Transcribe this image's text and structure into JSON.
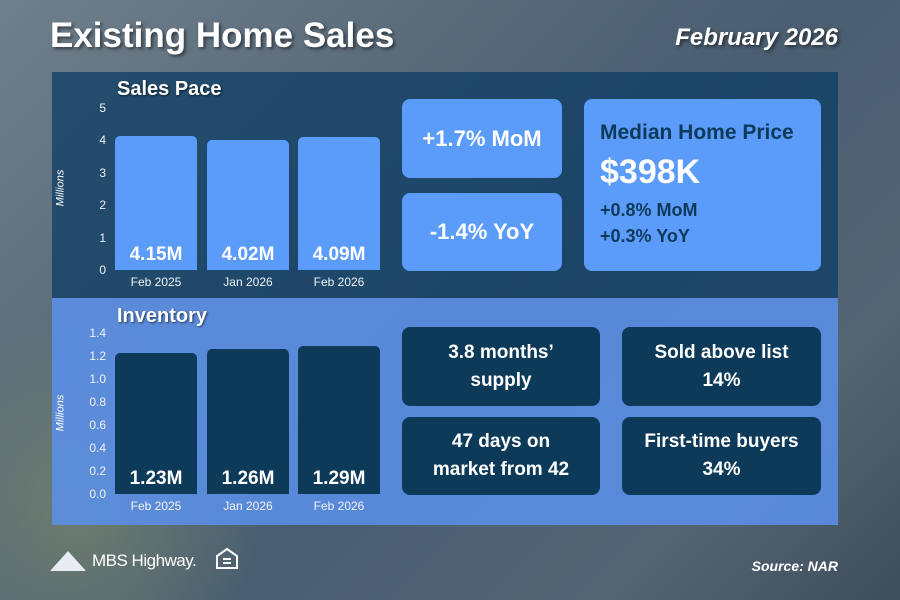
{
  "header": {
    "title": "Existing Home Sales",
    "date": "February 2026"
  },
  "sales_pace": {
    "title": "Sales Pace",
    "ylabel": "Millions",
    "ticks": [
      "0",
      "1",
      "2",
      "3",
      "4",
      "5"
    ],
    "categories": [
      "Feb 2025",
      "Jan 2026",
      "Feb 2026"
    ],
    "values": [
      4.15,
      4.02,
      4.09
    ],
    "labels": [
      "4.15M",
      "4.02M",
      "4.09M"
    ],
    "color": "#5b9bfa"
  },
  "stats": {
    "mom": "+1.7% MoM",
    "yoy": "-1.4% YoY"
  },
  "median": {
    "title": "Median Home Price",
    "value": "$398K",
    "mom": "+0.8% MoM",
    "yoy": "+0.3% YoY"
  },
  "inventory": {
    "title": "Inventory",
    "ylabel": "Millions",
    "ticks": [
      "0.0",
      "0.2",
      "0.4",
      "0.6",
      "0.8",
      "1.0",
      "1.2",
      "1.4"
    ],
    "categories": [
      "Feb 2025",
      "Jan 2026",
      "Feb 2026"
    ],
    "values": [
      1.23,
      1.26,
      1.29
    ],
    "labels": [
      "1.23M",
      "1.26M",
      "1.29M"
    ],
    "color": "#0e3a5a"
  },
  "inv_stats": {
    "supply_1": "3.8 months’",
    "supply_2": "supply",
    "days_1": "47 days on",
    "days_2": "market from 42",
    "above_1": "Sold above list",
    "above_2": "14%",
    "ftb_1": "First-time buyers",
    "ftb_2": "34%"
  },
  "footer": {
    "brand": "MBS Highway.",
    "source": "Source: NAR"
  }
}
